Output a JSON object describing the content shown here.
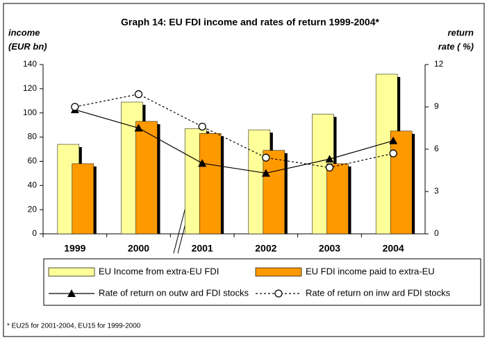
{
  "chart_data": {
    "type": "bar_line",
    "title": "Graph 14: EU FDI income and rates of return 1999-2004*",
    "y_label_lines": [
      "income",
      "(EUR bn)"
    ],
    "y2_label_lines": [
      "return",
      "rate ( %)"
    ],
    "categories": [
      "1999",
      "2000",
      "2001",
      "2002",
      "2003",
      "2004"
    ],
    "series": [
      {
        "name": "EU Income from extra-EU FDI",
        "kind": "bar",
        "color": "#ffff99",
        "values": [
          74,
          109,
          87,
          86,
          99,
          132
        ]
      },
      {
        "name": "EU FDI income paid to extra-EU",
        "kind": "bar",
        "color": "#ff9900",
        "values": [
          58,
          93,
          83,
          69,
          58,
          85
        ]
      },
      {
        "name": "Rate of return on outw ard FDI stocks",
        "kind": "line",
        "axis": "y2",
        "color": "#000000",
        "marker": "triangle",
        "line_style": "solid",
        "values": [
          8.8,
          7.5,
          5.0,
          4.3,
          5.3,
          6.6
        ]
      },
      {
        "name": "Rate of return on inw ard FDI stocks",
        "kind": "line",
        "axis": "y2",
        "color": "#000000",
        "marker": "circle",
        "line_style": "dashed",
        "values": [
          9.0,
          9.9,
          7.6,
          5.4,
          4.7,
          5.7
        ]
      }
    ],
    "ylim": [
      0,
      140
    ],
    "yticks": [
      0,
      20,
      40,
      60,
      80,
      100,
      120,
      140
    ],
    "y2lim": [
      0,
      12
    ],
    "y2ticks": [
      0,
      3,
      6,
      9,
      12
    ],
    "footnote": "* EU25 for 2001-2004, EU15 for 1999-2000"
  }
}
